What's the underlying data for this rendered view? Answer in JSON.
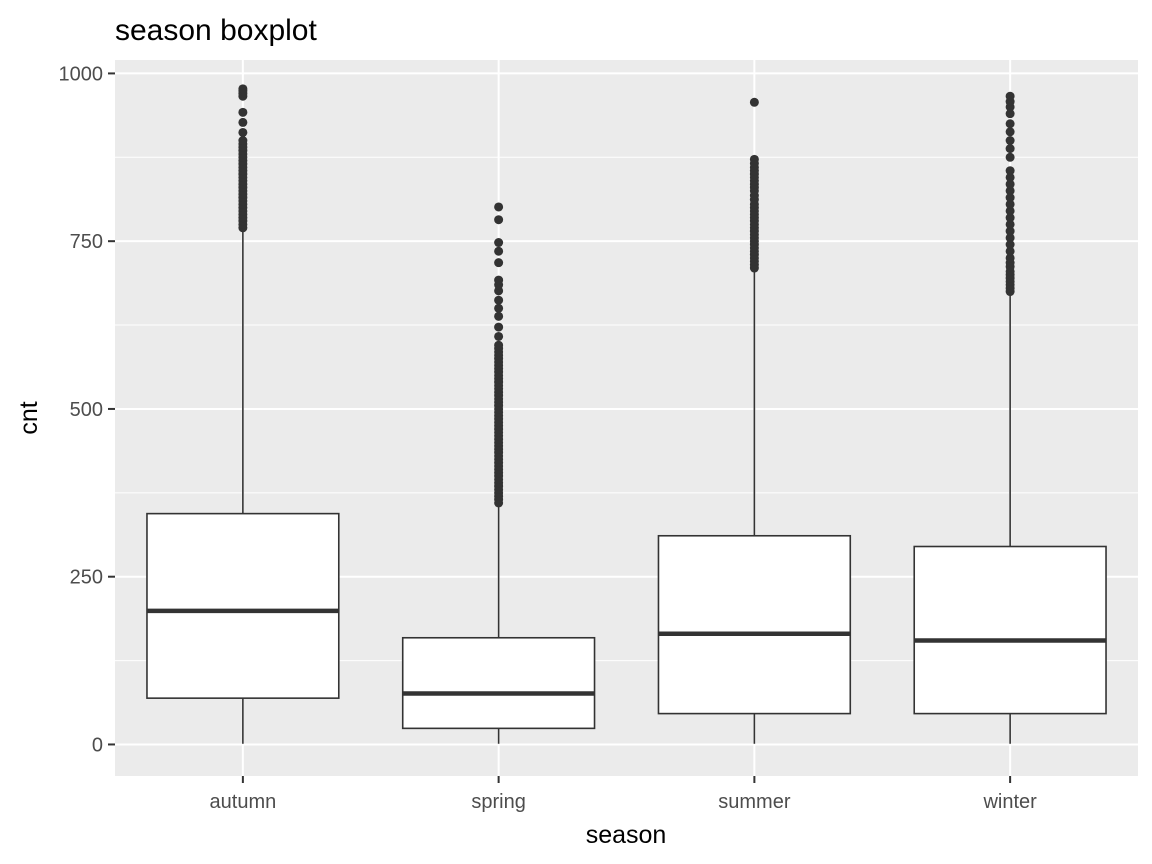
{
  "chart_data": {
    "type": "boxplot",
    "title": "season boxplot",
    "xlabel": "season",
    "ylabel": "cnt",
    "ylim": [
      -47,
      1020
    ],
    "y_ticks": [
      0,
      250,
      500,
      750,
      1000
    ],
    "y_tick_labels": [
      "0",
      "250",
      "500",
      "750",
      "1000"
    ],
    "grid": true,
    "categories": [
      "autumn",
      "spring",
      "summer",
      "winter"
    ],
    "boxes": [
      {
        "category": "autumn",
        "q1": 69,
        "median": 199,
        "q3": 344,
        "whisker_low": 1,
        "whisker_high": 766,
        "outliers": [
          770,
          775,
          780,
          785,
          790,
          795,
          800,
          805,
          810,
          815,
          820,
          825,
          830,
          835,
          840,
          845,
          850,
          855,
          860,
          865,
          870,
          875,
          880,
          885,
          890,
          895,
          900,
          912,
          927,
          942,
          966,
          970,
          974,
          977
        ]
      },
      {
        "category": "spring",
        "q1": 24,
        "median": 76,
        "q3": 159,
        "whisker_low": 1,
        "whisker_high": 358,
        "outliers": [
          360,
          365,
          370,
          375,
          380,
          385,
          390,
          395,
          400,
          405,
          410,
          415,
          420,
          425,
          430,
          435,
          440,
          445,
          450,
          455,
          460,
          465,
          470,
          475,
          480,
          485,
          490,
          495,
          500,
          505,
          510,
          515,
          520,
          525,
          530,
          535,
          540,
          545,
          550,
          555,
          560,
          565,
          570,
          575,
          580,
          585,
          590,
          595,
          608,
          622,
          638,
          650,
          662,
          676,
          685,
          692,
          718,
          735,
          748,
          782,
          801
        ]
      },
      {
        "category": "summer",
        "q1": 46,
        "median": 165,
        "q3": 311,
        "whisker_low": 1,
        "whisker_high": 706,
        "outliers": [
          710,
          715,
          720,
          725,
          730,
          735,
          740,
          745,
          750,
          755,
          760,
          765,
          770,
          775,
          780,
          785,
          790,
          795,
          800,
          805,
          812,
          818,
          825,
          830,
          835,
          840,
          845,
          850,
          855,
          860,
          866,
          872,
          957
        ]
      },
      {
        "category": "winter",
        "q1": 46,
        "median": 155,
        "q3": 295,
        "whisker_low": 1,
        "whisker_high": 670,
        "outliers": [
          675,
          680,
          685,
          690,
          695,
          700,
          705,
          712,
          718,
          725,
          735,
          745,
          755,
          765,
          775,
          785,
          795,
          805,
          815,
          825,
          835,
          845,
          855,
          875,
          888,
          900,
          913,
          925,
          940,
          950,
          958,
          966
        ]
      }
    ]
  }
}
